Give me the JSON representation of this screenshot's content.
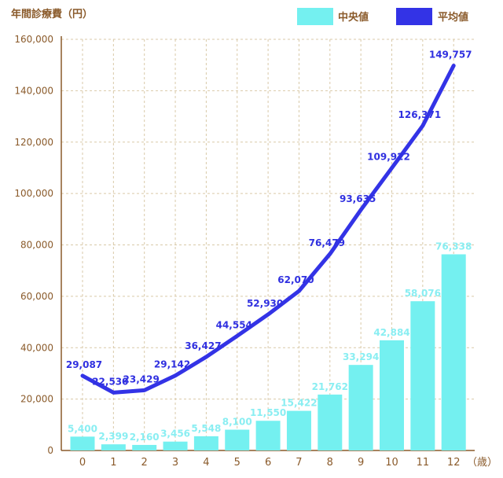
{
  "chart_data": {
    "type": "bar",
    "ylabel": "年間診療費（円）",
    "xunit": "（歳）",
    "categories": [
      "0",
      "1",
      "2",
      "3",
      "4",
      "5",
      "6",
      "7",
      "8",
      "9",
      "10",
      "11",
      "12"
    ],
    "ylim": [
      0,
      160000
    ],
    "yticks": [
      0,
      20000,
      40000,
      60000,
      80000,
      100000,
      120000,
      140000,
      160000
    ],
    "ytick_labels": [
      "0",
      "20,000",
      "40,000",
      "60,000",
      "80,000",
      "100,000",
      "120,000",
      "140,000",
      "160,000"
    ],
    "grid": true,
    "legend_position": "top-right",
    "series": [
      {
        "name": "中央値",
        "type": "bar",
        "color": "#74f0f0",
        "label_color": "#8aeef2",
        "values": [
          5400,
          2399,
          2160,
          3456,
          5548,
          8100,
          11550,
          15422,
          21762,
          33294,
          42884,
          58076,
          76338
        ],
        "labels": [
          "5,400",
          "2,399",
          "2,160",
          "3,456",
          "5,548",
          "8,100",
          "11,550",
          "15,422",
          "21,762",
          "33,294",
          "42,884",
          "58,076",
          "76,338"
        ]
      },
      {
        "name": "平均値",
        "type": "line",
        "color": "#3333e6",
        "label_color": "#3030e0",
        "values": [
          29087,
          22530,
          23429,
          29142,
          36427,
          44554,
          52930,
          62070,
          76479,
          93635,
          109922,
          126371,
          149757
        ],
        "labels": [
          "29,087",
          "22,530",
          "23,429",
          "29,142",
          "36,427",
          "44,554",
          "52,930",
          "62,070",
          "76,479",
          "93,635",
          "109,922",
          "126,371",
          "149,757"
        ]
      }
    ],
    "axis_color": "#8a5a2a",
    "grid_color": "#d9c9a8"
  }
}
